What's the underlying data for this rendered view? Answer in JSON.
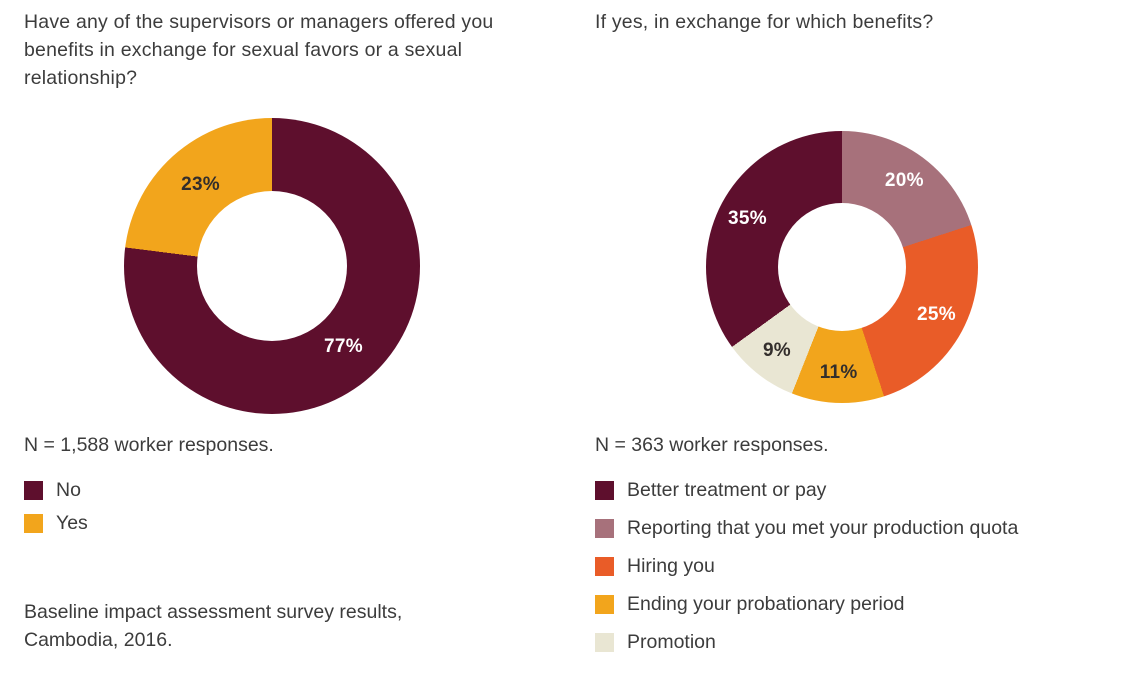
{
  "footer": {
    "line1": "Baseline impact assessment survey results,",
    "line2": "Cambodia, 2016."
  },
  "chart_data": [
    {
      "type": "pie",
      "subtype": "donut",
      "title": "Have any of the supervisors or managers offered you benefits in exchange for sexual favors or a sexual relationship?",
      "n": "N = 1,588 worker responses.",
      "start_angle_deg": 0,
      "direction": "clockwise",
      "label_radius_frac": 0.73,
      "legend_position": "below",
      "slices": [
        {
          "label": "No",
          "value": 77,
          "color": "#5E0F2D",
          "label_color": "#FFFFFF"
        },
        {
          "label": "Yes",
          "value": 23,
          "color": "#F2A51C",
          "label_color": "#332E2C"
        }
      ]
    },
    {
      "type": "pie",
      "subtype": "donut",
      "title": "If yes, in exchange for which benefits?",
      "n": "N = 363 worker responses.",
      "start_angle_deg": 234,
      "direction": "clockwise",
      "label_radius_frac": 0.78,
      "legend_position": "below",
      "slices": [
        {
          "label": "Better treatment or pay",
          "value": 35,
          "color": "#5E0F2D",
          "label_color": "#FFFFFF"
        },
        {
          "label": "Reporting that you met your production quota",
          "value": 20,
          "color": "#A7717B",
          "label_color": "#FFFFFF"
        },
        {
          "label": "Hiring you",
          "value": 25,
          "color": "#E95C28",
          "label_color": "#FFFFFF"
        },
        {
          "label": "Ending your probationary period",
          "value": 11,
          "color": "#F2A51C",
          "label_color": "#332E2C"
        },
        {
          "label": "Promotion",
          "value": 9,
          "color": "#E9E6D3",
          "label_color": "#332E2C"
        }
      ]
    }
  ]
}
